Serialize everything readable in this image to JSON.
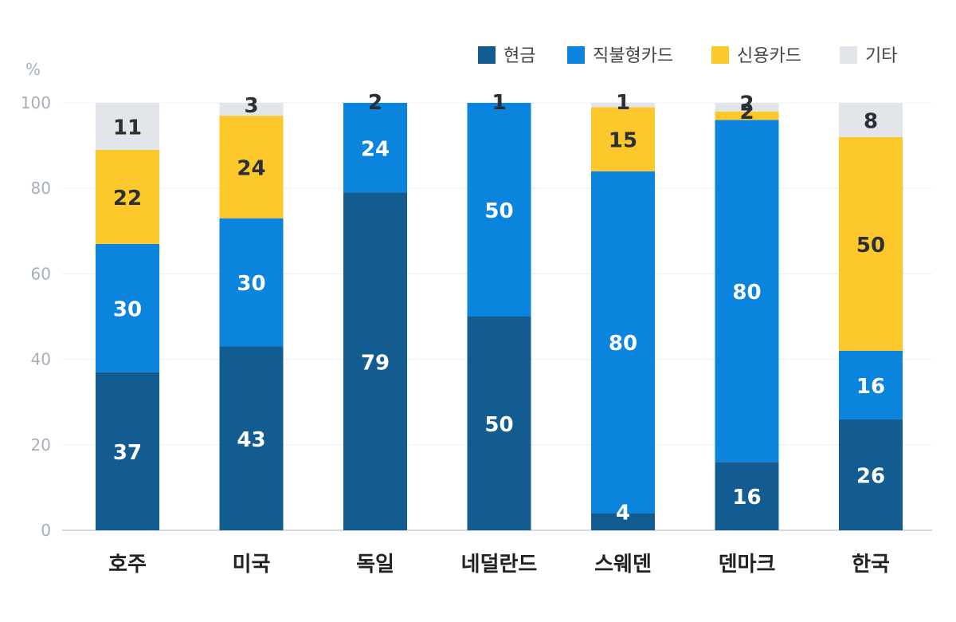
{
  "chart_data": {
    "type": "bar",
    "stacked": true,
    "unit_label": "%",
    "ylim": [
      0,
      100
    ],
    "yticks": [
      0,
      20,
      40,
      60,
      80,
      100
    ],
    "grid": true,
    "legend_position": "top-right",
    "categories": [
      "호주",
      "미국",
      "독일",
      "네덜란드",
      "스웨덴",
      "덴마크",
      "한국"
    ],
    "series": [
      {
        "name": "현금",
        "color": "#135c91",
        "label_color": "#ffffff",
        "values": [
          37,
          43,
          79,
          50,
          4,
          16,
          26
        ]
      },
      {
        "name": "직불형카드",
        "color": "#0a84dd",
        "label_color": "#ffffff",
        "values": [
          30,
          30,
          24,
          50,
          80,
          80,
          16
        ]
      },
      {
        "name": "신용카드",
        "color": "#fdc82b",
        "label_color": "#2b2f36",
        "values": [
          22,
          24,
          2,
          1,
          15,
          2,
          50
        ]
      },
      {
        "name": "기타",
        "color": "#e2e6ea",
        "label_color": "#2b2f36",
        "values": [
          11,
          3,
          2,
          1,
          1,
          2,
          8
        ]
      }
    ]
  }
}
